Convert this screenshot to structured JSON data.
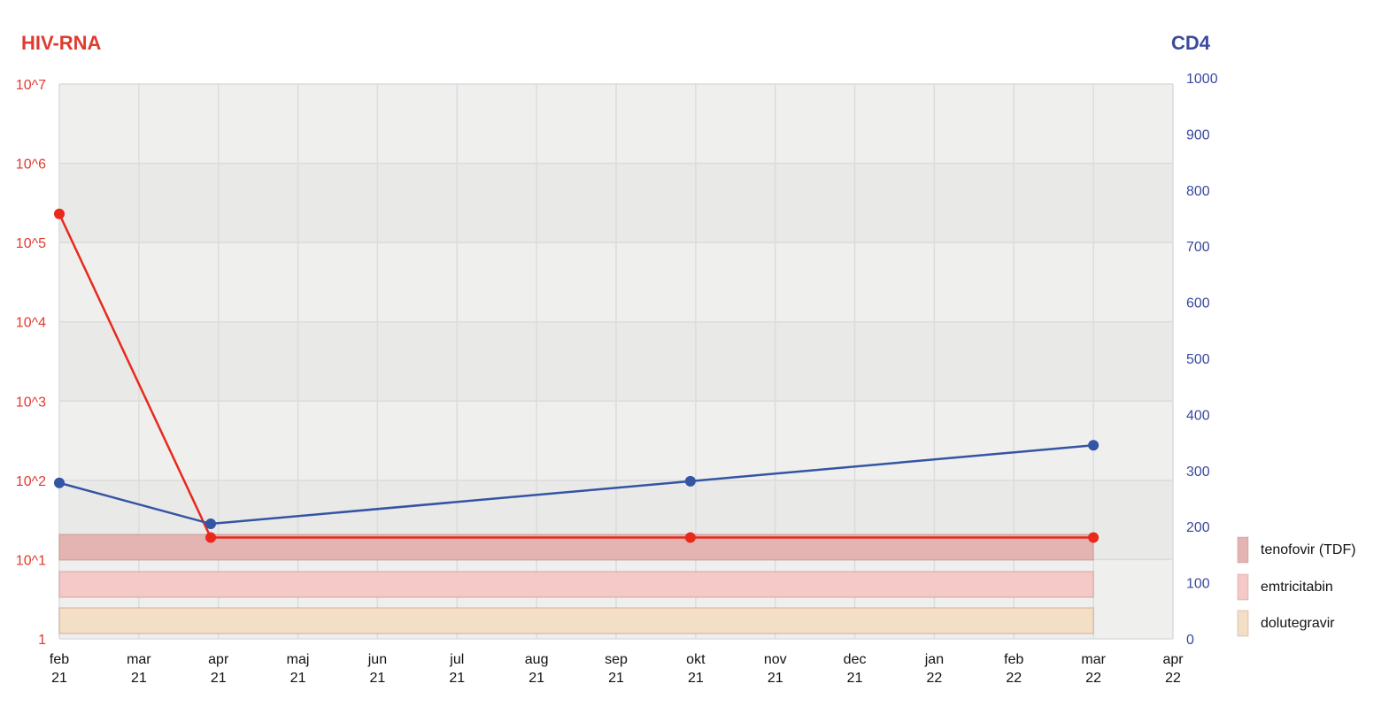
{
  "chart_data": {
    "type": "line",
    "left_axis": {
      "title": "HIV-RNA",
      "scale": "log",
      "ylim": [
        1,
        10000000
      ],
      "tick_labels": [
        "1",
        "10^1",
        "10^2",
        "10^3",
        "10^4",
        "10^5",
        "10^6",
        "10^7"
      ],
      "color": "#e03a2f"
    },
    "right_axis": {
      "title": "CD4",
      "scale": "linear",
      "ylim": [
        0,
        1000
      ],
      "tick_labels": [
        "0",
        "100",
        "200",
        "300",
        "400",
        "500",
        "600",
        "700",
        "800",
        "900",
        "1000"
      ],
      "color": "#3a4aa0"
    },
    "x_axis": {
      "range": [
        "2021-02-01",
        "2022-04-01"
      ],
      "tick_labels": [
        [
          "feb",
          "21"
        ],
        [
          "mar",
          "21"
        ],
        [
          "apr",
          "21"
        ],
        [
          "maj",
          "21"
        ],
        [
          "jun",
          "21"
        ],
        [
          "jul",
          "21"
        ],
        [
          "aug",
          "21"
        ],
        [
          "sep",
          "21"
        ],
        [
          "okt",
          "21"
        ],
        [
          "nov",
          "21"
        ],
        [
          "dec",
          "21"
        ],
        [
          "jan",
          "22"
        ],
        [
          "feb",
          "22"
        ],
        [
          "mar",
          "22"
        ],
        [
          "apr",
          "22"
        ]
      ]
    },
    "grid": true,
    "series": [
      {
        "axis": "left",
        "color": "#e8291c",
        "x": [
          "2021-02-01",
          "2021-03-29",
          "2021-09-29",
          "2022-03-01"
        ],
        "values": [
          230000,
          19,
          19,
          19
        ]
      },
      {
        "axis": "right",
        "color": "#3454a4",
        "x": [
          "2021-02-01",
          "2021-03-29",
          "2021-09-29",
          "2022-03-01"
        ],
        "values": [
          278,
          205,
          281,
          345
        ]
      }
    ],
    "treatments": [
      {
        "name": "tenofovir (TDF)",
        "start": "2021-02-01",
        "end": "2022-03-01",
        "color": "#e3b4b2"
      },
      {
        "name": "emtricitabin",
        "start": "2021-02-01",
        "end": "2022-03-01",
        "color": "#f4c9c8"
      },
      {
        "name": "dolutegravir",
        "start": "2021-02-01",
        "end": "2022-03-01",
        "color": "#f3dfc6"
      }
    ],
    "legend_position": "right"
  }
}
